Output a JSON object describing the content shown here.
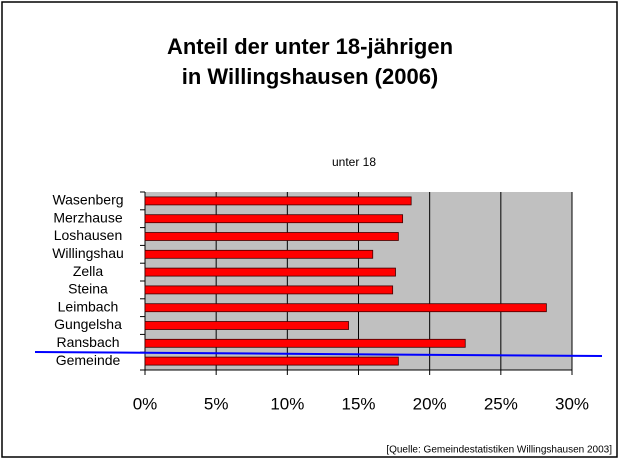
{
  "chart_data": {
    "type": "bar",
    "orientation": "horizontal",
    "title": [
      "Anteil der unter 18-jährigen",
      "in Willingshausen (2006)"
    ],
    "categories": [
      "Wasenberg",
      "Merzhause",
      "Loshausen",
      "Willingshau",
      "Zella",
      "Steina",
      "Leimbach",
      "Gungelsha",
      "Ransbach",
      "Gemeinde"
    ],
    "series": [
      {
        "name": "unter 18",
        "color": "#ff0000",
        "values": [
          18.7,
          18.1,
          17.8,
          16.0,
          17.6,
          17.4,
          28.2,
          14.3,
          22.5,
          17.8
        ]
      }
    ],
    "xlim": [
      0,
      30
    ],
    "xticks": [
      {
        "value": 0,
        "label": "0%"
      },
      {
        "value": 5,
        "label": "5%"
      },
      {
        "value": 10,
        "label": "10%"
      },
      {
        "value": 15,
        "label": "15%"
      },
      {
        "value": 20,
        "label": "20%"
      },
      {
        "value": 25,
        "label": "25%"
      },
      {
        "value": 30,
        "label": "30%"
      }
    ],
    "grid": true,
    "plot_background": "#c0c0c0",
    "source": "[Quelle: Gemeindestatistiken Willingshausen 2003]"
  }
}
